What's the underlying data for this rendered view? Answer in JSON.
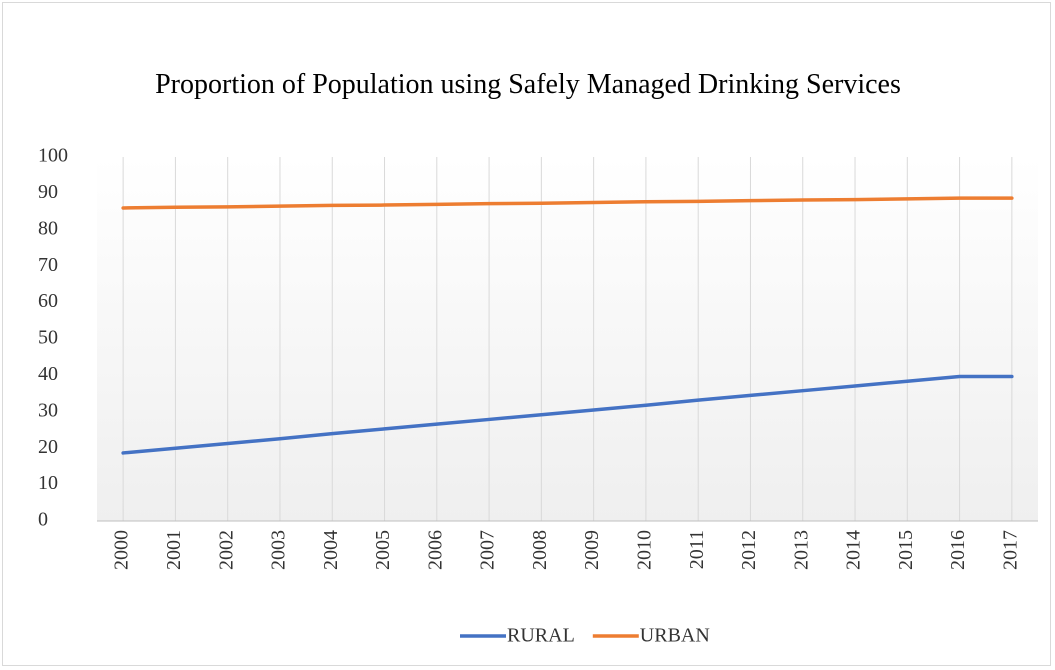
{
  "chart_data": {
    "type": "line",
    "title": "Proportion of Population using Safely Managed Drinking Services",
    "categories": [
      "2000",
      "2001",
      "2002",
      "2003",
      "2004",
      "2005",
      "2006",
      "2007",
      "2008",
      "2009",
      "2010",
      "2011",
      "2012",
      "2013",
      "2014",
      "2015",
      "2016",
      "2017"
    ],
    "series": [
      {
        "name": "RURAL",
        "color": "#4472c4",
        "values": [
          18.7,
          20.0,
          21.3,
          22.6,
          24.0,
          25.3,
          26.6,
          27.9,
          29.2,
          30.5,
          31.8,
          33.2,
          34.5,
          35.8,
          37.1,
          38.4,
          39.7,
          39.7
        ]
      },
      {
        "name": "URBAN",
        "color": "#ed7d31",
        "values": [
          86.0,
          86.2,
          86.3,
          86.5,
          86.7,
          86.8,
          87.0,
          87.2,
          87.3,
          87.5,
          87.7,
          87.8,
          88.0,
          88.2,
          88.3,
          88.5,
          88.7,
          88.7
        ]
      }
    ],
    "ylim": [
      0,
      100
    ],
    "yticks": [
      0,
      10,
      20,
      30,
      40,
      50,
      60,
      70,
      80,
      90,
      100
    ],
    "grid": true,
    "legend": "bottom"
  }
}
